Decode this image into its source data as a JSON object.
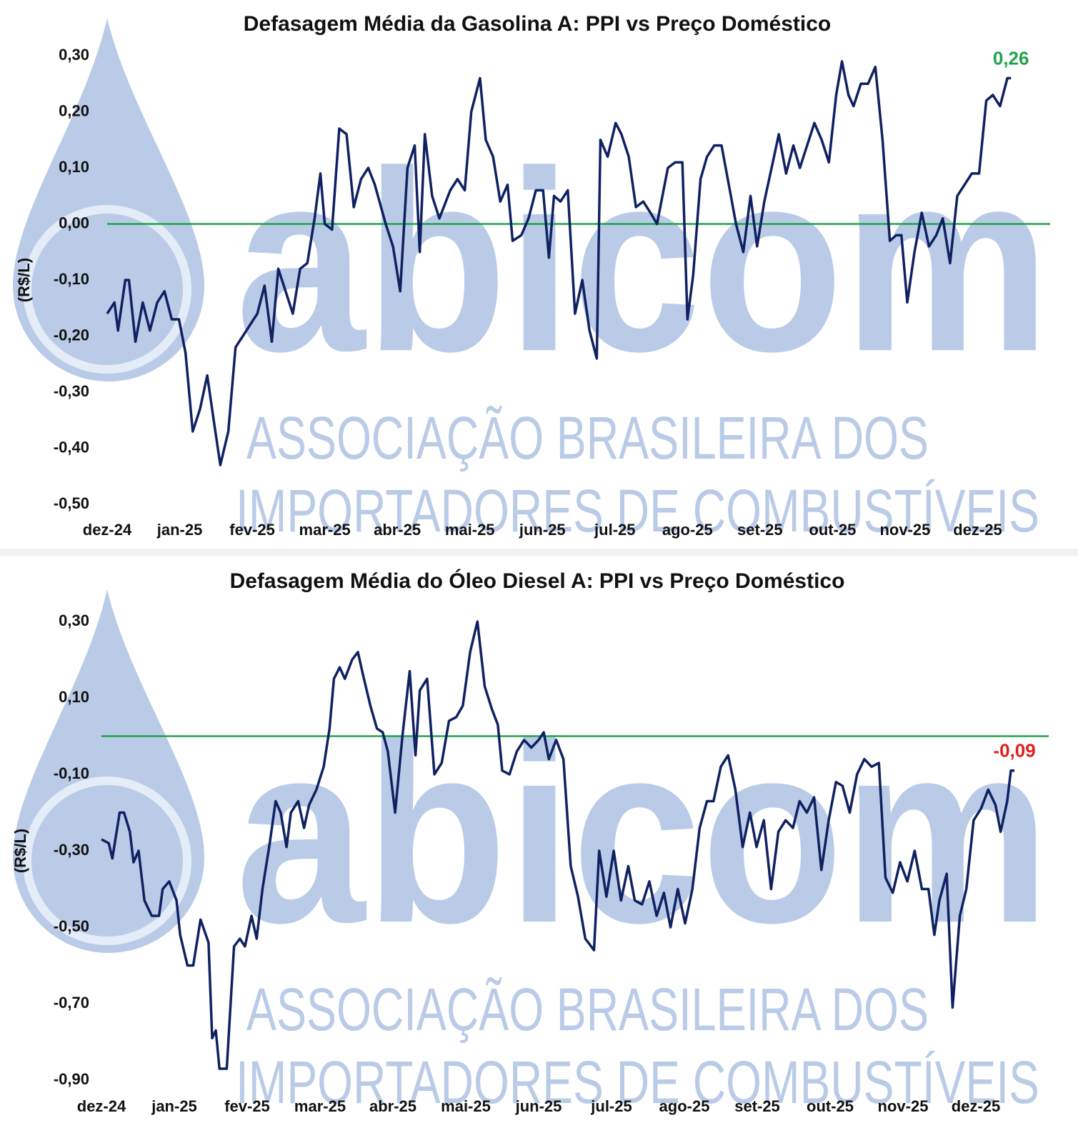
{
  "watermark": {
    "logo": "abicom",
    "line1": "ASSOCIAÇÃO BRASILEIRA DOS",
    "line2": "IMPORTADORES DE COMBUSTÍVEIS"
  },
  "chart_data": [
    {
      "type": "line",
      "title": "Defasagem Média da Gasolina A: PPI vs Preço Doméstico",
      "y_label": "(R$/L)",
      "color": "#0f2161",
      "x": [
        0,
        0.1,
        0.15,
        0.25,
        0.3,
        0.39,
        0.49,
        0.59,
        0.69,
        0.79,
        0.89,
        0.99,
        1.08,
        1.18,
        1.28,
        1.38,
        1.48,
        1.56,
        1.67,
        1.77,
        1.87,
        1.97,
        2.07,
        2.17,
        2.27,
        2.36,
        2.46,
        2.56,
        2.66,
        2.76,
        2.86,
        2.94,
        3.0,
        3.1,
        3.2,
        3.3,
        3.4,
        3.5,
        3.6,
        3.69,
        3.84,
        3.94,
        4.04,
        4.14,
        4.24,
        4.31,
        4.38,
        4.48,
        4.58,
        4.73,
        4.83,
        4.93,
        5.02,
        5.14,
        5.22,
        5.32,
        5.42,
        5.52,
        5.59,
        5.71,
        5.81,
        5.91,
        6.01,
        6.09,
        6.16,
        6.25,
        6.35,
        6.45,
        6.55,
        6.65,
        6.75,
        6.8,
        6.9,
        7.01,
        7.09,
        7.19,
        7.29,
        7.39,
        7.49,
        7.58,
        7.73,
        7.83,
        7.93,
        8.0,
        8.08,
        8.18,
        8.27,
        8.37,
        8.47,
        8.57,
        8.67,
        8.77,
        8.87,
        8.96,
        9.06,
        9.16,
        9.26,
        9.36,
        9.46,
        9.55,
        9.65,
        9.75,
        9.85,
        9.95,
        10.05,
        10.13,
        10.22,
        10.29,
        10.39,
        10.49,
        10.59,
        10.69,
        10.79,
        10.88,
        10.95,
        11.03,
        11.13,
        11.23,
        11.33,
        11.43,
        11.52,
        11.62,
        11.72,
        11.82,
        11.92,
        12.02,
        12.12,
        12.21,
        12.31,
        12.41,
        12.46
      ],
      "values": [
        -0.16,
        -0.14,
        -0.19,
        -0.1,
        -0.1,
        -0.21,
        -0.14,
        -0.19,
        -0.14,
        -0.12,
        -0.17,
        -0.17,
        -0.23,
        -0.37,
        -0.33,
        -0.27,
        -0.36,
        -0.43,
        -0.37,
        -0.22,
        -0.2,
        -0.18,
        -0.16,
        -0.11,
        -0.21,
        -0.08,
        -0.12,
        -0.16,
        -0.08,
        -0.07,
        0.01,
        0.09,
        0.0,
        -0.01,
        0.17,
        0.16,
        0.03,
        0.08,
        0.1,
        0.07,
        0.0,
        -0.04,
        -0.12,
        0.1,
        0.14,
        -0.05,
        0.16,
        0.05,
        0.01,
        0.06,
        0.08,
        0.06,
        0.2,
        0.26,
        0.15,
        0.12,
        0.04,
        0.07,
        -0.03,
        -0.02,
        0.01,
        0.06,
        0.06,
        -0.06,
        0.05,
        0.04,
        0.06,
        -0.16,
        -0.1,
        -0.19,
        -0.24,
        0.15,
        0.12,
        0.18,
        0.16,
        0.12,
        0.03,
        0.04,
        0.02,
        0.0,
        0.1,
        0.11,
        0.11,
        -0.17,
        -0.09,
        0.08,
        0.12,
        0.14,
        0.14,
        0.07,
        0.0,
        -0.05,
        0.05,
        -0.04,
        0.04,
        0.1,
        0.16,
        0.09,
        0.14,
        0.1,
        0.14,
        0.18,
        0.15,
        0.11,
        0.23,
        0.29,
        0.23,
        0.21,
        0.25,
        0.25,
        0.28,
        0.15,
        -0.03,
        -0.02,
        -0.02,
        -0.14,
        -0.05,
        0.02,
        -0.04,
        -0.02,
        0.01,
        -0.07,
        0.05,
        0.07,
        0.09,
        0.09,
        0.22,
        0.23,
        0.21,
        0.26,
        0.26
      ],
      "last_label": {
        "text": "0,26",
        "color": "#1fa34a"
      },
      "reference_line": {
        "value": 0,
        "color": "#1fa34a"
      },
      "xlim": [
        0,
        13
      ],
      "xticks": [
        {
          "value": 0,
          "label": "dez-24"
        },
        {
          "value": 1,
          "label": "jan-25"
        },
        {
          "value": 2,
          "label": "fev-25"
        },
        {
          "value": 3,
          "label": "mar-25"
        },
        {
          "value": 4,
          "label": "abr-25"
        },
        {
          "value": 5,
          "label": "mai-25"
        },
        {
          "value": 6,
          "label": "jun-25"
        },
        {
          "value": 7,
          "label": "jul-25"
        },
        {
          "value": 8,
          "label": "ago-25"
        },
        {
          "value": 9,
          "label": "set-25"
        },
        {
          "value": 10,
          "label": "out-25"
        },
        {
          "value": 11,
          "label": "nov-25"
        },
        {
          "value": 12,
          "label": "dez-25"
        }
      ],
      "ylim": [
        -0.5,
        0.3
      ],
      "yticks": [
        {
          "value": 0.3,
          "label": "0,30"
        },
        {
          "value": 0.2,
          "label": "0,20"
        },
        {
          "value": 0.1,
          "label": "0,10"
        },
        {
          "value": 0,
          "label": "0,00"
        },
        {
          "value": -0.1,
          "label": "-0,10"
        },
        {
          "value": -0.2,
          "label": "-0,20"
        },
        {
          "value": -0.3,
          "label": "-0,30"
        },
        {
          "value": -0.4,
          "label": "-0,40"
        },
        {
          "value": -0.5,
          "label": "-0,50"
        }
      ]
    },
    {
      "type": "line",
      "title": "Defasagem Média do Óleo Diesel A: PPI vs Preço Doméstico",
      "y_label": "(R$/L)",
      "color": "#0f2161",
      "x": [
        0,
        0.1,
        0.15,
        0.25,
        0.31,
        0.39,
        0.44,
        0.51,
        0.59,
        0.69,
        0.79,
        0.84,
        0.93,
        1.03,
        1.08,
        1.18,
        1.26,
        1.36,
        1.47,
        1.52,
        1.57,
        1.62,
        1.72,
        1.82,
        1.9,
        1.97,
        2.06,
        2.13,
        2.21,
        2.31,
        2.39,
        2.46,
        2.54,
        2.6,
        2.7,
        2.78,
        2.85,
        2.95,
        3.05,
        3.13,
        3.19,
        3.27,
        3.34,
        3.44,
        3.52,
        3.59,
        3.69,
        3.78,
        3.86,
        3.93,
        4.03,
        4.13,
        4.23,
        4.31,
        4.37,
        4.47,
        4.57,
        4.67,
        4.77,
        4.87,
        4.96,
        5.06,
        5.16,
        5.26,
        5.36,
        5.44,
        5.5,
        5.6,
        5.7,
        5.8,
        5.9,
        6.0,
        6.07,
        6.14,
        6.24,
        6.34,
        6.44,
        6.54,
        6.64,
        6.76,
        6.83,
        6.93,
        7.03,
        7.13,
        7.23,
        7.32,
        7.42,
        7.52,
        7.62,
        7.72,
        7.81,
        7.91,
        8.01,
        8.11,
        8.21,
        8.31,
        8.4,
        8.5,
        8.6,
        8.7,
        8.8,
        8.9,
        8.99,
        9.09,
        9.19,
        9.29,
        9.39,
        9.49,
        9.58,
        9.68,
        9.78,
        9.88,
        9.98,
        10.08,
        10.17,
        10.27,
        10.37,
        10.47,
        10.57,
        10.67,
        10.76,
        10.86,
        10.96,
        11.06,
        11.16,
        11.26,
        11.35,
        11.43,
        11.5,
        11.6,
        11.68,
        11.78,
        11.87,
        11.97,
        12.07,
        12.17,
        12.27,
        12.34,
        12.43,
        12.48,
        12.53
      ],
      "values": [
        -0.27,
        -0.28,
        -0.32,
        -0.2,
        -0.2,
        -0.25,
        -0.33,
        -0.3,
        -0.43,
        -0.47,
        -0.47,
        -0.4,
        -0.38,
        -0.43,
        -0.52,
        -0.6,
        -0.6,
        -0.48,
        -0.54,
        -0.79,
        -0.77,
        -0.87,
        -0.87,
        -0.55,
        -0.53,
        -0.55,
        -0.47,
        -0.53,
        -0.4,
        -0.28,
        -0.17,
        -0.2,
        -0.29,
        -0.2,
        -0.17,
        -0.24,
        -0.18,
        -0.14,
        -0.08,
        0.02,
        0.15,
        0.18,
        0.15,
        0.2,
        0.22,
        0.16,
        0.08,
        0.02,
        0.01,
        -0.04,
        -0.2,
        0.0,
        0.17,
        -0.05,
        0.12,
        0.15,
        -0.1,
        -0.07,
        0.04,
        0.05,
        0.08,
        0.22,
        0.3,
        0.13,
        0.07,
        0.03,
        -0.09,
        -0.1,
        -0.04,
        -0.01,
        -0.03,
        -0.01,
        0.01,
        -0.06,
        -0.01,
        -0.06,
        -0.34,
        -0.42,
        -0.53,
        -0.56,
        -0.3,
        -0.42,
        -0.3,
        -0.43,
        -0.34,
        -0.43,
        -0.44,
        -0.38,
        -0.47,
        -0.41,
        -0.5,
        -0.4,
        -0.49,
        -0.4,
        -0.24,
        -0.17,
        -0.17,
        -0.08,
        -0.05,
        -0.14,
        -0.29,
        -0.2,
        -0.29,
        -0.22,
        -0.4,
        -0.25,
        -0.22,
        -0.24,
        -0.17,
        -0.2,
        -0.16,
        -0.35,
        -0.22,
        -0.12,
        -0.13,
        -0.2,
        -0.1,
        -0.06,
        -0.08,
        -0.07,
        -0.37,
        -0.41,
        -0.33,
        -0.38,
        -0.3,
        -0.4,
        -0.4,
        -0.52,
        -0.43,
        -0.36,
        -0.71,
        -0.47,
        -0.4,
        -0.22,
        -0.19,
        -0.14,
        -0.18,
        -0.25,
        -0.17,
        -0.09,
        -0.09
      ],
      "last_label": {
        "text": "-0,09",
        "color": "#e0201b"
      },
      "reference_line": {
        "value": 0,
        "color": "#1fa34a"
      },
      "xlim": [
        0,
        13
      ],
      "xticks": [
        {
          "value": 0,
          "label": "dez-24"
        },
        {
          "value": 1,
          "label": "jan-25"
        },
        {
          "value": 2,
          "label": "fev-25"
        },
        {
          "value": 3,
          "label": "mar-25"
        },
        {
          "value": 4,
          "label": "abr-25"
        },
        {
          "value": 5,
          "label": "mai-25"
        },
        {
          "value": 6,
          "label": "jun-25"
        },
        {
          "value": 7,
          "label": "jul-25"
        },
        {
          "value": 8,
          "label": "ago-25"
        },
        {
          "value": 9,
          "label": "set-25"
        },
        {
          "value": 10,
          "label": "out-25"
        },
        {
          "value": 11,
          "label": "nov-25"
        },
        {
          "value": 12,
          "label": "dez-25"
        }
      ],
      "ylim": [
        -0.9,
        0.3
      ],
      "yticks": [
        {
          "value": 0.3,
          "label": "0,30"
        },
        {
          "value": 0.1,
          "label": "0,10"
        },
        {
          "value": -0.1,
          "label": "-0,10"
        },
        {
          "value": -0.3,
          "label": "-0,30"
        },
        {
          "value": -0.5,
          "label": "-0,50"
        },
        {
          "value": -0.7,
          "label": "-0,70"
        },
        {
          "value": -0.9,
          "label": "-0,90"
        }
      ]
    }
  ]
}
